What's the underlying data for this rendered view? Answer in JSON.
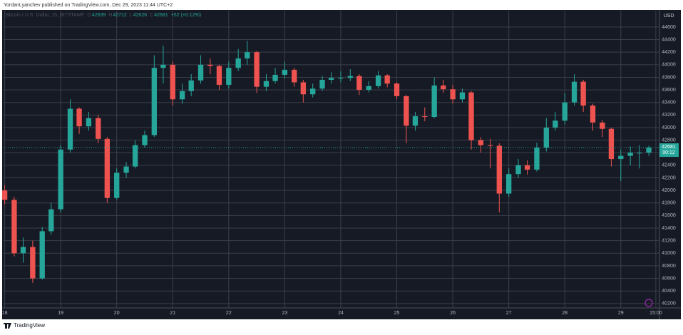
{
  "header": {
    "author_line": "YordanLyanchev published on TradingView.com, Dec 29, 2023 11:44 UTC+2",
    "brand": "TradingView"
  },
  "chart_data": {
    "type": "candlestick",
    "legend": {
      "symbol": "Bitcoin / U.S. Dollar, 15, BITSTAMP",
      "o_label": "O",
      "o": 42639,
      "h_label": "H",
      "h": 42712,
      "l_label": "L",
      "l": 42626,
      "c_label": "C",
      "c": 42681,
      "change": "+52 (+0.12%)"
    },
    "currency": "USD",
    "last_price": 42681,
    "countdown": "00:12",
    "up_color": "#26a69a",
    "down_color": "#ef5350",
    "grid": true,
    "x": [
      18.0,
      18.17,
      18.33,
      18.5,
      18.67,
      18.83,
      19.0,
      19.17,
      19.33,
      19.5,
      19.67,
      19.83,
      20.0,
      20.17,
      20.33,
      20.5,
      20.67,
      20.83,
      21.0,
      21.17,
      21.33,
      21.5,
      21.67,
      21.83,
      22.0,
      22.17,
      22.33,
      22.5,
      22.67,
      22.83,
      23.0,
      23.17,
      23.33,
      23.5,
      23.67,
      23.83,
      24.0,
      24.17,
      24.33,
      24.5,
      24.67,
      24.83,
      25.0,
      25.17,
      25.33,
      25.5,
      25.67,
      25.83,
      26.0,
      26.17,
      26.33,
      26.5,
      26.67,
      26.83,
      27.0,
      27.17,
      27.33,
      27.5,
      27.67,
      27.83,
      28.0,
      28.17,
      28.33,
      28.5,
      28.67,
      28.83,
      29.0,
      29.17,
      29.33,
      29.5
    ],
    "open": [
      42000,
      41850,
      41000,
      41100,
      40600,
      41350,
      41700,
      42650,
      43300,
      43020,
      43150,
      42820,
      41880,
      42280,
      42380,
      42720,
      42880,
      43950,
      44000,
      43450,
      43580,
      43750,
      44000,
      43980,
      43680,
      43950,
      44100,
      44200,
      43650,
      43740,
      43840,
      43920,
      43720,
      43530,
      43620,
      43760,
      43790,
      43790,
      43820,
      43600,
      43660,
      43830,
      43700,
      43500,
      43030,
      43180,
      43170,
      43670,
      43610,
      43450,
      43560,
      42800,
      42720,
      42710,
      41950,
      42260,
      42400,
      42330,
      42680,
      43000,
      43110,
      43400,
      43730,
      43350,
      43080,
      42980,
      42500,
      42550,
      42600,
      42600
    ],
    "high": [
      42080,
      41900,
      41250,
      41200,
      41420,
      41800,
      42720,
      43450,
      43320,
      43250,
      43200,
      42850,
      42350,
      42450,
      42800,
      42950,
      44150,
      44300,
      44050,
      43700,
      43850,
      44150,
      44100,
      44000,
      44050,
      44250,
      44380,
      44220,
      43850,
      43950,
      44050,
      43950,
      43760,
      43700,
      43820,
      43880,
      43900,
      43930,
      43850,
      43740,
      43900,
      43850,
      43720,
      43520,
      43250,
      43320,
      43800,
      43760,
      43680,
      43620,
      43580,
      42850,
      42820,
      42750,
      42350,
      42500,
      42480,
      42760,
      43150,
      43250,
      43550,
      43850,
      43760,
      43380,
      43120,
      43000,
      42650,
      42700,
      42720,
      42712
    ],
    "low": [
      41780,
      40950,
      40850,
      40530,
      40580,
      41300,
      41650,
      42600,
      42900,
      42950,
      42750,
      41800,
      41850,
      42200,
      42350,
      42680,
      42850,
      43700,
      43350,
      43380,
      43500,
      43700,
      43850,
      43600,
      43620,
      43900,
      44000,
      43550,
      43580,
      43700,
      43780,
      43650,
      43400,
      43480,
      43580,
      43700,
      43720,
      43740,
      43520,
      43560,
      43620,
      43640,
      43450,
      42750,
      42950,
      43100,
      43150,
      43550,
      43380,
      43400,
      42650,
      42600,
      42350,
      41650,
      41900,
      42200,
      42250,
      42300,
      42620,
      42950,
      43050,
      43350,
      43250,
      42950,
      42850,
      42380,
      42150,
      42400,
      42350,
      42550
    ],
    "close": [
      41850,
      41000,
      41100,
      40600,
      41350,
      41700,
      42650,
      43300,
      43020,
      43150,
      42820,
      41880,
      42280,
      42380,
      42720,
      42880,
      43950,
      44000,
      43450,
      43580,
      43750,
      44000,
      43980,
      43680,
      43950,
      44100,
      44200,
      43650,
      43740,
      43840,
      43920,
      43720,
      43530,
      43620,
      43760,
      43790,
      43790,
      43820,
      43600,
      43660,
      43830,
      43700,
      43500,
      43030,
      43180,
      43170,
      43670,
      43610,
      43450,
      43560,
      42800,
      42720,
      42710,
      41950,
      42260,
      42400,
      42330,
      42680,
      43000,
      43110,
      43400,
      43730,
      43350,
      43080,
      42980,
      42500,
      42550,
      42600,
      42600,
      42681
    ],
    "xlim": [
      17.98,
      29.69
    ],
    "xticks": [
      18,
      19,
      20,
      21,
      22,
      23,
      24,
      25,
      26,
      27,
      28,
      29,
      {
        "value": 29.625,
        "label": "15:00"
      }
    ],
    "ylim": [
      40130,
      44860
    ],
    "yticks": [
      40200,
      40400,
      40600,
      40800,
      41000,
      41200,
      41400,
      41600,
      41800,
      42000,
      42200,
      42400,
      42600,
      42800,
      43000,
      43200,
      43400,
      43600,
      43800,
      44000,
      44200,
      44400,
      44600
    ]
  }
}
